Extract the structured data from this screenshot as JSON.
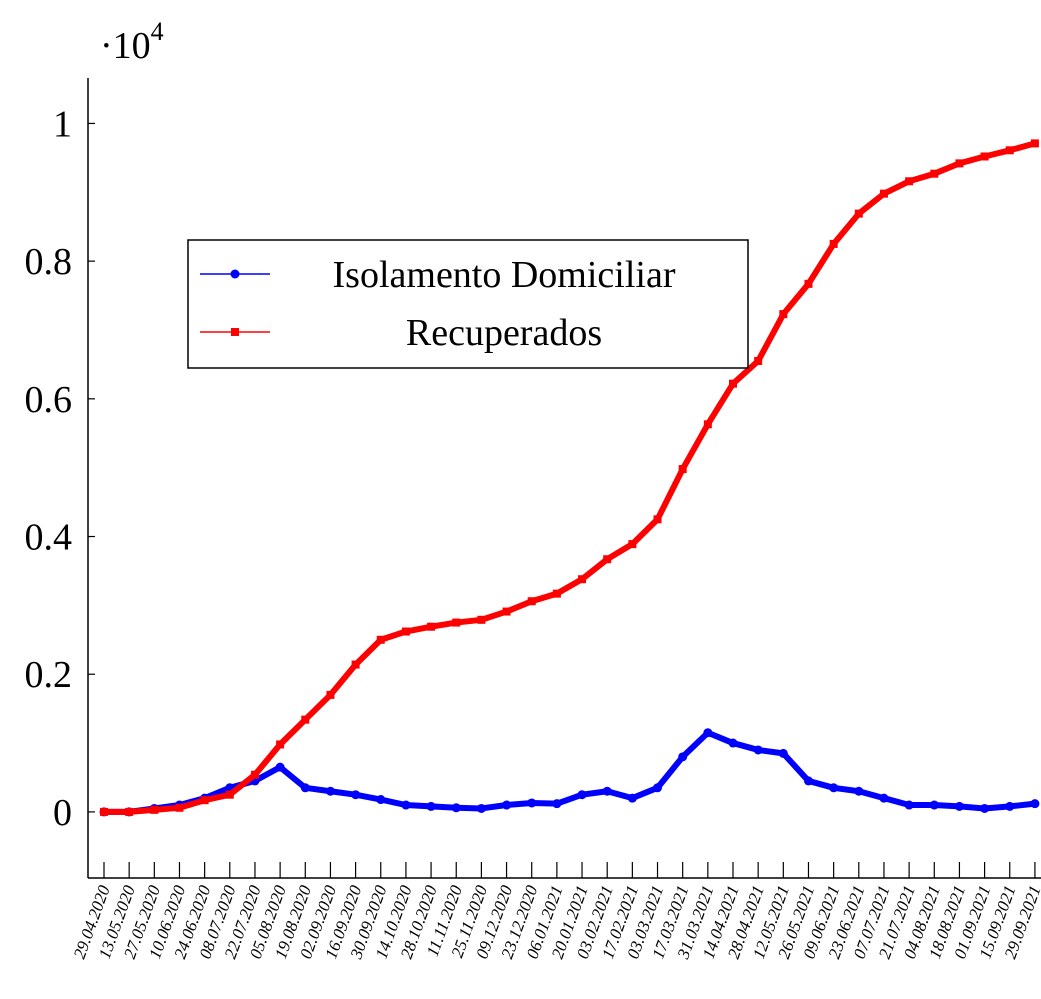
{
  "chart_data": {
    "type": "line",
    "y_multiplier": "·10",
    "y_exponent": "4",
    "categories": [
      "29.04.2020",
      "13.05.2020",
      "27.05.2020",
      "10.06.2020",
      "24.06.2020",
      "08.07.2020",
      "22.07.2020",
      "05.08.2020",
      "19.08.2020",
      "02.09.2020",
      "16.09.2020",
      "30.09.2020",
      "14.10.2020",
      "28.10.2020",
      "11.11.2020",
      "25.11.2020",
      "09.12.2020",
      "23.12.2020",
      "06.01.2021",
      "20.01.2021",
      "03.02.2021",
      "17.02.2021",
      "03.03.2021",
      "17.03.2021",
      "31.03.2021",
      "14.04.2021",
      "28.04.2021",
      "12.05.2021",
      "26.05.2021",
      "09.06.2021",
      "23.06.2021",
      "07.07.2021",
      "21.07.2021",
      "04.08.2021",
      "18.08.2021",
      "01.09.2021",
      "15.09.2021",
      "29.09.2021"
    ],
    "series": [
      {
        "name": "Isolamento Domiciliar",
        "color": "#0000ff",
        "marker": "circle",
        "values": [
          0,
          0,
          0.005,
          0.01,
          0.02,
          0.035,
          0.045,
          0.065,
          0.035,
          0.03,
          0.025,
          0.018,
          0.01,
          0.008,
          0.006,
          0.005,
          0.01,
          0.013,
          0.012,
          0.025,
          0.03,
          0.02,
          0.035,
          0.08,
          0.115,
          0.1,
          0.09,
          0.085,
          0.045,
          0.035,
          0.03,
          0.02,
          0.01,
          0.01,
          0.008,
          0.005,
          0.008,
          0.012
        ]
      },
      {
        "name": "Recuperados",
        "color": "#ff0000",
        "marker": "square",
        "values": [
          0,
          0,
          0.003,
          0.006,
          0.017,
          0.025,
          0.054,
          0.098,
          0.134,
          0.17,
          0.214,
          0.25,
          0.262,
          0.269,
          0.275,
          0.279,
          0.291,
          0.306,
          0.317,
          0.338,
          0.367,
          0.389,
          0.425,
          0.498,
          0.563,
          0.622,
          0.655,
          0.723,
          0.767,
          0.825,
          0.869,
          0.898,
          0.916,
          0.927,
          0.942,
          0.952,
          0.961,
          0.971
        ]
      }
    ],
    "ylim": [
      -0.096,
      1.066
    ],
    "yticks": [
      0,
      0.2,
      0.4,
      0.6,
      0.8,
      1
    ],
    "grid": false
  }
}
